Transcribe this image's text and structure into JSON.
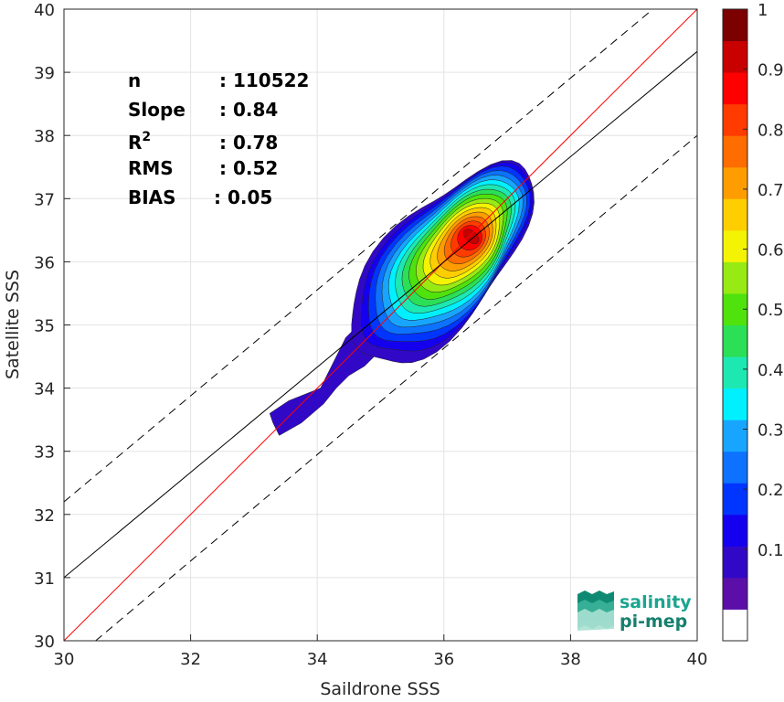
{
  "chart_data": {
    "type": "scatter",
    "subtype": "density-contour",
    "xlabel": "Saildrone SSS",
    "ylabel": "Satellite SSS",
    "xlim": [
      30,
      40
    ],
    "ylim": [
      30,
      40
    ],
    "xticks": [
      "30",
      "32",
      "34",
      "36",
      "38",
      "40"
    ],
    "yticks": [
      "30",
      "31",
      "32",
      "33",
      "34",
      "35",
      "36",
      "37",
      "38",
      "39",
      "40"
    ],
    "grid": true,
    "stats": [
      {
        "label": "n",
        "value": ": 110522"
      },
      {
        "label": "Slope",
        "value": ": 0.84"
      },
      {
        "label": "R",
        "sup": "2",
        "value": ": 0.78"
      },
      {
        "label": "RMS",
        "value": ": 0.52"
      },
      {
        "label": "BIAS",
        "value": ": 0.05"
      }
    ],
    "lines": [
      {
        "name": "identity",
        "color": "#ff0000",
        "dash": "solid",
        "x": [
          30,
          40
        ],
        "y": [
          30,
          40
        ]
      },
      {
        "name": "regression",
        "color": "#000000",
        "dash": "solid",
        "x": [
          30,
          40
        ],
        "y": [
          31.0,
          39.33
        ]
      },
      {
        "name": "upper-bound",
        "color": "#000000",
        "dash": "dashed",
        "x": [
          30,
          39.3
        ],
        "y": [
          32.2,
          40
        ]
      },
      {
        "name": "lower-bound",
        "color": "#000000",
        "dash": "dashed",
        "x": [
          30.5,
          40
        ],
        "y": [
          30,
          38.0
        ]
      }
    ],
    "density_peak": {
      "x": 36.43,
      "y": 36.4
    },
    "colorbar": {
      "ticks": [
        "0.1",
        "0.2",
        "0.3",
        "0.4",
        "0.5",
        "0.6",
        "0.7",
        "0.8",
        "0.9",
        "1"
      ],
      "range": [
        0,
        1
      ],
      "bins": 19,
      "colors": [
        "#ffffff",
        "#5b0fa8",
        "#3208c7",
        "#1400ef",
        "#0035ff",
        "#0c72ff",
        "#18a5ff",
        "#00f0ff",
        "#1ee8b2",
        "#2bdf56",
        "#4fe20c",
        "#97ea14",
        "#f3f303",
        "#ffce00",
        "#ff9d00",
        "#ff6c00",
        "#ff3b00",
        "#ff0000",
        "#c90000",
        "#7d0000"
      ]
    }
  },
  "logo": {
    "line1": "salinity",
    "line2": "pi-mep"
  }
}
